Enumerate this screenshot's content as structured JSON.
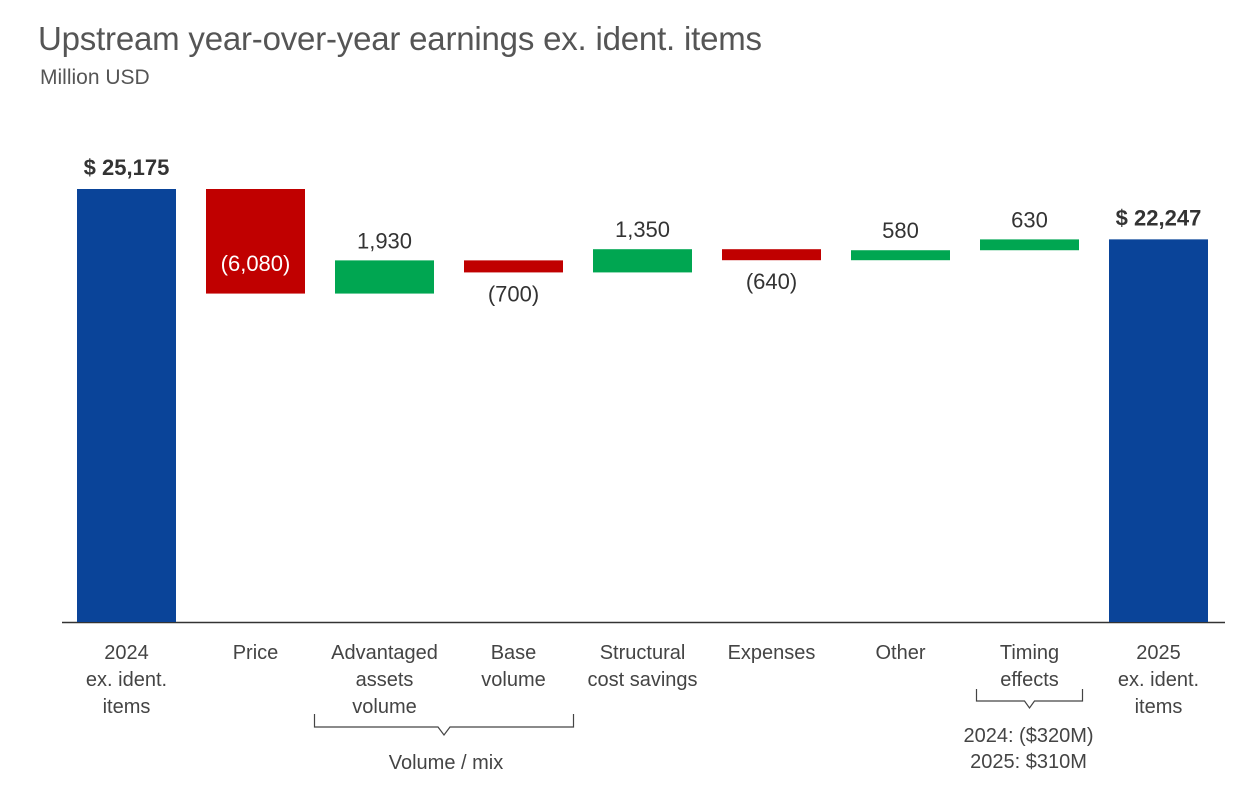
{
  "title": "Upstream year-over-year earnings ex. ident. items",
  "subtitle": "Million USD",
  "chart_data": {
    "type": "waterfall",
    "colors": {
      "total": "#0a4499",
      "increase": "#00a651",
      "decrease": "#c00000"
    },
    "bars": [
      {
        "category": [
          "2024",
          "ex. ident.",
          "items"
        ],
        "kind": "total",
        "value": 25175,
        "label": "$ 25,175"
      },
      {
        "category": [
          "Price"
        ],
        "kind": "decrease",
        "value": -6080,
        "label": "(6,080)"
      },
      {
        "category": [
          "Advantaged",
          "assets",
          "volume"
        ],
        "kind": "increase",
        "value": 1930,
        "label": "1,930"
      },
      {
        "category": [
          "Base",
          "volume"
        ],
        "kind": "decrease",
        "value": -700,
        "label": "(700)"
      },
      {
        "category": [
          "Structural",
          "cost savings"
        ],
        "kind": "increase",
        "value": 1350,
        "label": "1,350"
      },
      {
        "category": [
          "Expenses"
        ],
        "kind": "decrease",
        "value": -640,
        "label": "(640)"
      },
      {
        "category": [
          "Other"
        ],
        "kind": "increase",
        "value": 580,
        "label": "580"
      },
      {
        "category": [
          "Timing",
          "effects"
        ],
        "kind": "increase",
        "value": 630,
        "label": "630"
      },
      {
        "category": [
          "2025",
          "ex. ident.",
          "items"
        ],
        "kind": "total",
        "value": 22247,
        "label": "$ 22,247"
      }
    ],
    "groups": [
      {
        "label": "Volume / mix",
        "from": 2,
        "to": 3
      }
    ],
    "notes": [
      {
        "bar": 7,
        "lines": [
          "2024: ($320M)",
          "2025: $310M"
        ]
      }
    ]
  }
}
